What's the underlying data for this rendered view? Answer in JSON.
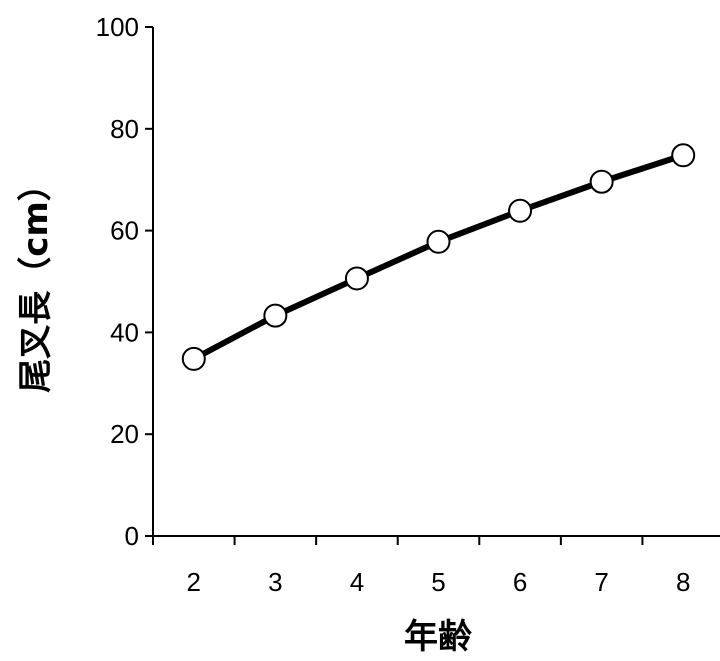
{
  "chart_data": {
    "type": "line",
    "x": [
      "2",
      "3",
      "4",
      "5",
      "6",
      "7",
      "8"
    ],
    "series": [
      {
        "values": [
          34.8,
          43.3,
          50.6,
          57.8,
          63.9,
          69.6,
          74.8
        ]
      }
    ],
    "xlabel": "年齢",
    "ylabel": "尾叉長（cm）",
    "ylim": [
      0,
      100
    ],
    "yticks": [
      0,
      20,
      40,
      60,
      80,
      100
    ],
    "grid": false,
    "line_color": "#000000",
    "marker_fill": "#ffffff",
    "marker_stroke": "#000000"
  }
}
